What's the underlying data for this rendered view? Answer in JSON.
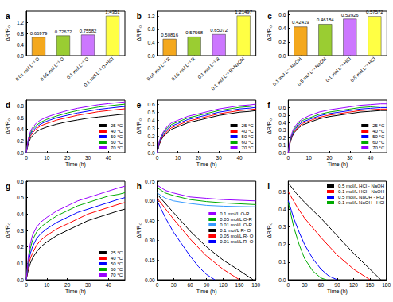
{
  "chart_data": [
    {
      "type": "bar",
      "title": "a",
      "y_label": "ΔR/R₀",
      "categories": [
        "0.01 mol L⁻¹ O",
        "0.05 mol L⁻¹ O",
        "0.1 mol L⁻¹ O",
        "0.1 mol L⁻¹ O+HCl"
      ],
      "values": [
        0.66979,
        0.72672,
        0.75582,
        1.4351
      ],
      "colors": [
        "#f4a81d",
        "#9acd32",
        "#cc77ff",
        "#ffff44"
      ],
      "ylim": [
        0,
        1.6
      ],
      "yticks": [
        {
          "value": 0,
          "label": "0.0"
        },
        0.4,
        0.8,
        1.2
      ],
      "grid": false,
      "data_labels": true
    },
    {
      "type": "bar",
      "title": "b",
      "y_label": "ΔR/R₀",
      "categories": [
        "0.01 mol L⁻¹ R",
        "0.05 mol L⁻¹ R",
        "0.1 mol L⁻¹ R",
        "0.1 mol L⁻¹ R+NaOH"
      ],
      "values": [
        0.50816,
        0.57568,
        0.65072,
        1.21497
      ],
      "colors": [
        "#f4a81d",
        "#9acd32",
        "#cc77ff",
        "#ffff44"
      ],
      "ylim": [
        0,
        1.35
      ],
      "yticks": [
        {
          "value": 0,
          "label": "0.0"
        },
        0.4,
        0.8,
        1.2
      ],
      "grid": false,
      "data_labels": true
    },
    {
      "type": "bar",
      "title": "c",
      "y_label": "ΔR/R₀",
      "categories": [
        "0.1 mol L⁻¹ NaOH",
        "0.5 mol L⁻¹ NaOH",
        "0.1 mol L⁻¹ HCl",
        "0.5 mol L⁻¹ HCl"
      ],
      "values": [
        0.42419,
        0.46184,
        0.53926,
        0.57572
      ],
      "colors": [
        "#f4a81d",
        "#9acd32",
        "#cc77ff",
        "#ffff44"
      ],
      "ylim": [
        0,
        0.65
      ],
      "yticks": [
        {
          "value": 0,
          "label": "0.0"
        },
        0.2,
        0.4,
        0.6
      ],
      "grid": false,
      "data_labels": true
    },
    {
      "type": "line",
      "title": "d",
      "x_label": "Time (h)",
      "y_label": "ΔR/R₀",
      "x": [
        0,
        1,
        2,
        3,
        5,
        7,
        10,
        15,
        20,
        25,
        30,
        35,
        40,
        45,
        48
      ],
      "series": [
        {
          "name": "25 °C",
          "color": "#000000",
          "values": [
            0,
            0.15,
            0.24,
            0.29,
            0.36,
            0.4,
            0.44,
            0.49,
            0.53,
            0.56,
            0.59,
            0.61,
            0.63,
            0.65,
            0.66
          ]
        },
        {
          "name": "40 °C",
          "color": "#ff0000",
          "values": [
            0,
            0.18,
            0.28,
            0.34,
            0.41,
            0.46,
            0.5,
            0.56,
            0.6,
            0.64,
            0.67,
            0.7,
            0.72,
            0.74,
            0.75
          ]
        },
        {
          "name": "50 °C",
          "color": "#0000ff",
          "values": [
            0,
            0.2,
            0.31,
            0.37,
            0.44,
            0.49,
            0.54,
            0.6,
            0.64,
            0.68,
            0.71,
            0.74,
            0.76,
            0.78,
            0.79
          ]
        },
        {
          "name": "60 °C",
          "color": "#00aa00",
          "values": [
            0,
            0.22,
            0.33,
            0.4,
            0.47,
            0.52,
            0.57,
            0.63,
            0.68,
            0.72,
            0.75,
            0.78,
            0.8,
            0.82,
            0.83
          ]
        },
        {
          "name": "70 °C",
          "color": "#9900ff",
          "values": [
            0,
            0.24,
            0.36,
            0.43,
            0.51,
            0.56,
            0.61,
            0.67,
            0.72,
            0.76,
            0.79,
            0.82,
            0.84,
            0.86,
            0.87
          ]
        }
      ],
      "xlim": [
        0,
        48
      ],
      "xticks": [
        0,
        10,
        20,
        30,
        40
      ],
      "ylim": [
        0,
        0.9
      ],
      "yticks": [
        {
          "value": 0,
          "label": "0.0"
        },
        0.2,
        0.4,
        0.6,
        0.8
      ],
      "grid": false,
      "legend": "lower right"
    },
    {
      "type": "line",
      "title": "e",
      "x_label": "Time (h)",
      "y_label": "ΔR/R₀",
      "x": [
        0,
        1,
        2,
        3,
        5,
        7,
        10,
        15,
        20,
        25,
        30,
        35,
        40,
        45,
        48
      ],
      "series": [
        {
          "name": "25 °C",
          "color": "#000000",
          "values": [
            0,
            0.1,
            0.16,
            0.2,
            0.25,
            0.29,
            0.32,
            0.37,
            0.4,
            0.43,
            0.46,
            0.48,
            0.5,
            0.51,
            0.52
          ]
        },
        {
          "name": "40 °C",
          "color": "#ff0000",
          "values": [
            0,
            0.11,
            0.17,
            0.21,
            0.27,
            0.31,
            0.34,
            0.39,
            0.42,
            0.45,
            0.48,
            0.5,
            0.52,
            0.53,
            0.54
          ]
        },
        {
          "name": "50 °C",
          "color": "#0000ff",
          "values": [
            0,
            0.12,
            0.18,
            0.23,
            0.29,
            0.33,
            0.36,
            0.41,
            0.44,
            0.47,
            0.5,
            0.52,
            0.54,
            0.55,
            0.56
          ]
        },
        {
          "name": "60 °C",
          "color": "#00aa00",
          "values": [
            0,
            0.13,
            0.2,
            0.25,
            0.31,
            0.35,
            0.38,
            0.43,
            0.46,
            0.49,
            0.52,
            0.54,
            0.56,
            0.57,
            0.58
          ]
        },
        {
          "name": "70 °C",
          "color": "#9900ff",
          "values": [
            0,
            0.14,
            0.21,
            0.26,
            0.33,
            0.37,
            0.4,
            0.45,
            0.48,
            0.51,
            0.54,
            0.56,
            0.58,
            0.59,
            0.6
          ]
        }
      ],
      "xlim": [
        0,
        48
      ],
      "xticks": [
        0,
        10,
        20,
        30,
        40
      ],
      "ylim": [
        0,
        0.65
      ],
      "yticks": [
        {
          "value": 0,
          "label": "0.0"
        },
        0.1,
        0.2,
        0.3,
        0.4,
        0.5,
        0.6
      ],
      "grid": false,
      "legend": "lower right"
    },
    {
      "type": "line",
      "title": "f",
      "x_label": "Time (h)",
      "y_label": "ΔR/R₀",
      "x": [
        0,
        1,
        2,
        3,
        5,
        7,
        10,
        15,
        20,
        25,
        30,
        35,
        40,
        45,
        48
      ],
      "series": [
        {
          "name": "25 °C",
          "color": "#000000",
          "values": [
            0,
            0.14,
            0.22,
            0.27,
            0.33,
            0.37,
            0.4,
            0.45,
            0.48,
            0.5,
            0.52,
            0.54,
            0.55,
            0.56,
            0.56
          ]
        },
        {
          "name": "40 °C",
          "color": "#ff0000",
          "values": [
            0,
            0.15,
            0.23,
            0.28,
            0.35,
            0.39,
            0.42,
            0.47,
            0.5,
            0.52,
            0.54,
            0.56,
            0.57,
            0.58,
            0.58
          ]
        },
        {
          "name": "50 °C",
          "color": "#0000ff",
          "values": [
            0,
            0.16,
            0.24,
            0.3,
            0.37,
            0.41,
            0.44,
            0.49,
            0.52,
            0.54,
            0.56,
            0.58,
            0.59,
            0.6,
            0.6
          ]
        },
        {
          "name": "60 °C",
          "color": "#00aa00",
          "values": [
            0,
            0.17,
            0.26,
            0.32,
            0.39,
            0.43,
            0.46,
            0.51,
            0.54,
            0.56,
            0.58,
            0.6,
            0.61,
            0.62,
            0.62
          ]
        },
        {
          "name": "70 °C",
          "color": "#9900ff",
          "values": [
            0,
            0.19,
            0.28,
            0.34,
            0.41,
            0.45,
            0.49,
            0.54,
            0.57,
            0.59,
            0.61,
            0.63,
            0.64,
            0.65,
            0.65
          ]
        }
      ],
      "xlim": [
        0,
        48
      ],
      "xticks": [
        0,
        10,
        20,
        30,
        40
      ],
      "ylim": [
        0,
        0.7
      ],
      "yticks": [
        {
          "value": 0,
          "label": "0.0"
        },
        0.1,
        0.2,
        0.3,
        0.4,
        0.5,
        0.6
      ],
      "grid": false,
      "legend": "lower right"
    },
    {
      "type": "line",
      "title": "g",
      "x_label": "Time (h)",
      "y_label": "ΔR/R₀",
      "x": [
        0,
        1,
        2,
        3,
        5,
        7,
        10,
        15,
        20,
        25,
        30,
        35,
        40,
        45,
        48
      ],
      "series": [
        {
          "name": "25 °C",
          "color": "#000000",
          "values": [
            0,
            0.06,
            0.1,
            0.13,
            0.17,
            0.2,
            0.23,
            0.27,
            0.3,
            0.33,
            0.36,
            0.38,
            0.4,
            0.42,
            0.43
          ]
        },
        {
          "name": "40 °C",
          "color": "#ff0000",
          "values": [
            0,
            0.08,
            0.13,
            0.16,
            0.21,
            0.24,
            0.27,
            0.31,
            0.34,
            0.37,
            0.4,
            0.42,
            0.44,
            0.46,
            0.47
          ]
        },
        {
          "name": "50 °C",
          "color": "#0000ff",
          "values": [
            0,
            0.1,
            0.16,
            0.2,
            0.25,
            0.28,
            0.31,
            0.35,
            0.38,
            0.41,
            0.43,
            0.45,
            0.47,
            0.49,
            0.5
          ]
        },
        {
          "name": "60 °C",
          "color": "#00aa00",
          "values": [
            0,
            0.12,
            0.19,
            0.24,
            0.29,
            0.32,
            0.35,
            0.39,
            0.42,
            0.45,
            0.47,
            0.49,
            0.51,
            0.52,
            0.53
          ]
        },
        {
          "name": "70 °C",
          "color": "#9900ff",
          "values": [
            0,
            0.14,
            0.22,
            0.27,
            0.32,
            0.35,
            0.38,
            0.42,
            0.45,
            0.48,
            0.5,
            0.52,
            0.54,
            0.56,
            0.57
          ]
        }
      ],
      "xlim": [
        0,
        48
      ],
      "xticks": [
        0,
        10,
        20,
        30,
        40
      ],
      "ylim": [
        0,
        0.6
      ],
      "yticks": [
        {
          "value": 0,
          "label": "0.0"
        },
        0.1,
        0.2,
        0.3,
        0.4,
        0.5,
        0.6
      ],
      "grid": false,
      "legend": "lower right"
    },
    {
      "type": "line",
      "title": "h",
      "x_label": "Time (h)",
      "y_label": "ΔR/R₀",
      "series": [
        {
          "name": "0.1 mol/L O-R",
          "color": "#9900ff",
          "x": [
            0,
            15,
            30,
            60,
            90,
            120,
            150,
            180
          ],
          "values": [
            0.72,
            0.68,
            0.66,
            0.63,
            0.62,
            0.61,
            0.605,
            0.6
          ]
        },
        {
          "name": "0.05 mol/L O-R",
          "color": "#00aa00",
          "x": [
            0,
            15,
            30,
            60,
            90,
            120,
            150,
            180
          ],
          "values": [
            0.7,
            0.66,
            0.64,
            0.61,
            0.595,
            0.585,
            0.578,
            0.572
          ]
        },
        {
          "name": "0.01 mol/L O-R",
          "color": "#3399ff",
          "x": [
            0,
            15,
            30,
            60,
            90,
            120,
            150,
            180
          ],
          "values": [
            0.66,
            0.62,
            0.6,
            0.58,
            0.566,
            0.56,
            0.557,
            0.555
          ]
        },
        {
          "name": "0.1 mol/L R- O",
          "color": "#000000",
          "x": [
            0,
            30,
            60,
            90,
            120,
            150,
            175
          ],
          "values": [
            0.65,
            0.51,
            0.37,
            0.25,
            0.15,
            0.07,
            0
          ]
        },
        {
          "name": "0.05 mol/L R- O",
          "color": "#ff0000",
          "x": [
            0,
            30,
            60,
            90,
            120,
            150
          ],
          "values": [
            0.62,
            0.46,
            0.31,
            0.18,
            0.08,
            0
          ]
        },
        {
          "name": "0.01 mol/L R- O",
          "color": "#0000ff",
          "x": [
            0,
            15,
            30,
            45,
            60,
            75,
            90,
            105
          ],
          "values": [
            0.6,
            0.47,
            0.36,
            0.27,
            0.18,
            0.1,
            0.04,
            0
          ]
        }
      ],
      "xlim": [
        0,
        180
      ],
      "xticks": [
        0,
        30,
        60,
        90,
        120,
        150,
        180
      ],
      "ylim": [
        0,
        0.75
      ],
      "yticks": [
        {
          "value": 0,
          "label": "0.00"
        },
        0.15,
        {
          "value": 0.3,
          "label": "0.30"
        },
        0.45,
        {
          "value": 0.6,
          "label": "0.60"
        },
        0.75
      ],
      "grid": false,
      "legend": "right"
    },
    {
      "type": "line",
      "title": "i",
      "x_label": "Time (h)",
      "y_label": "ΔR/R₀",
      "series": [
        {
          "name": "0.5 mol/L HCl - NaOH",
          "color": "#000000",
          "x": [
            0,
            15,
            30,
            60,
            90,
            120,
            150,
            170
          ],
          "values": [
            0.55,
            0.49,
            0.44,
            0.35,
            0.25,
            0.15,
            0.06,
            0
          ]
        },
        {
          "name": "0.1 mol/L HCl - NaOH",
          "color": "#ff0000",
          "x": [
            0,
            15,
            30,
            60,
            90,
            120,
            150
          ],
          "values": [
            0.5,
            0.42,
            0.35,
            0.24,
            0.14,
            0.06,
            0
          ]
        },
        {
          "name": "0.5 mol/L NaOH - HCl",
          "color": "#0000ff",
          "x": [
            0,
            10,
            20,
            30,
            45,
            60,
            75,
            90
          ],
          "values": [
            0.45,
            0.35,
            0.27,
            0.2,
            0.12,
            0.06,
            0.02,
            0
          ]
        },
        {
          "name": "0.1 mol/L NaOH - HCl",
          "color": "#00aa00",
          "x": [
            0,
            10,
            20,
            30,
            45,
            60,
            70
          ],
          "values": [
            0.44,
            0.3,
            0.2,
            0.12,
            0.05,
            0.01,
            0
          ]
        }
      ],
      "xlim": [
        0,
        180
      ],
      "xticks": [
        0,
        30,
        60,
        90,
        120,
        150,
        180
      ],
      "ylim": [
        0,
        0.56
      ],
      "yticks": [
        {
          "value": 0,
          "label": "0.0"
        },
        0.1,
        0.2,
        0.3,
        0.4,
        0.5
      ],
      "grid": false,
      "legend": "upper right"
    }
  ]
}
